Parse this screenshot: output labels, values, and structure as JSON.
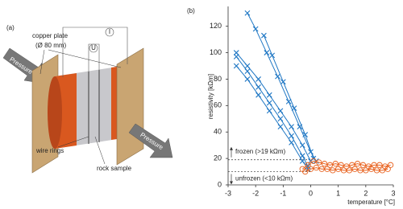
{
  "panel_a": {
    "label": "(a)",
    "copper_plate": "copper plate",
    "diameter": "(Ø 80 mm)",
    "pressure_left": "Pressure",
    "pressure_right": "Pressure",
    "current": "I",
    "voltage": "U",
    "wire_rings": "wire rings",
    "rock_sample": "rock sample"
  },
  "chart_data": {
    "type": "scatter",
    "panel_label": "(b)",
    "x_label": "temperature [°C]",
    "y_label": "resistivity [kΩm]",
    "xlim": [
      -3,
      3
    ],
    "ylim": [
      0,
      135
    ],
    "xticks": [
      -3,
      -2,
      -1,
      0,
      1,
      2,
      3
    ],
    "yticks": [
      0,
      20,
      40,
      60,
      80,
      100,
      120
    ],
    "thresholds": [
      {
        "value": 19,
        "label": "frozen (>19 kΩm)"
      },
      {
        "value": 10,
        "label": "unfrozen (<10 kΩm)"
      }
    ],
    "series": [
      {
        "color": "#1f77c4",
        "marker": "x",
        "x": [
          -2.3,
          -2.0,
          -1.6,
          -1.2,
          -0.8,
          -0.4,
          0,
          0.2
        ],
        "values": [
          130,
          118,
          100,
          82,
          63,
          44,
          25,
          18
        ]
      },
      {
        "color": "#1f77c4",
        "marker": "x",
        "x": [
          -1.7,
          -1.4,
          -1.0,
          -0.6,
          -0.2,
          0.1
        ],
        "values": [
          113,
          98,
          78,
          58,
          38,
          20
        ]
      },
      {
        "color": "#1f77c4",
        "marker": "x",
        "x": [
          -2.7,
          -2.3,
          -1.9,
          -1.5,
          -1.1,
          -0.7,
          -0.3,
          0
        ],
        "values": [
          100,
          90,
          80,
          68,
          56,
          44,
          30,
          18
        ]
      },
      {
        "color": "#1f77c4",
        "marker": "x",
        "x": [
          -2.7,
          -2.3,
          -1.9,
          -1.5,
          -1.1,
          -0.7,
          -0.3,
          -0.1
        ],
        "values": [
          97,
          86,
          74,
          62,
          50,
          37,
          22,
          14
        ]
      },
      {
        "color": "#1f77c4",
        "marker": "x",
        "x": [
          -2.7,
          -2.3,
          -1.9,
          -1.5,
          -1.1,
          -0.7,
          -0.3,
          -0.1
        ],
        "values": [
          90,
          80,
          68,
          56,
          44,
          32,
          18,
          12
        ]
      },
      {
        "color": "#e8601c",
        "marker": "o",
        "x": [
          -0.3,
          -0.1,
          0.1,
          0.3,
          0.5,
          0.7,
          0.9,
          1.1,
          1.3,
          1.5,
          1.7,
          1.9,
          2.1,
          2.3,
          2.5,
          2.7,
          2.9
        ],
        "values": [
          12,
          15,
          18,
          17,
          16,
          15,
          16,
          15,
          14,
          15,
          16,
          15,
          14,
          15,
          15,
          14,
          15
        ]
      },
      {
        "color": "#e8601c",
        "marker": "o",
        "x": [
          -0.2,
          0,
          0.2,
          0.4,
          0.6,
          0.8,
          1.0,
          1.2,
          1.4,
          1.6,
          1.8,
          2.0,
          2.2,
          2.4,
          2.6,
          2.8
        ],
        "values": [
          10,
          12,
          13,
          12,
          12,
          11,
          12,
          11,
          11,
          12,
          11,
          11,
          12,
          11,
          11,
          12
        ]
      }
    ]
  }
}
